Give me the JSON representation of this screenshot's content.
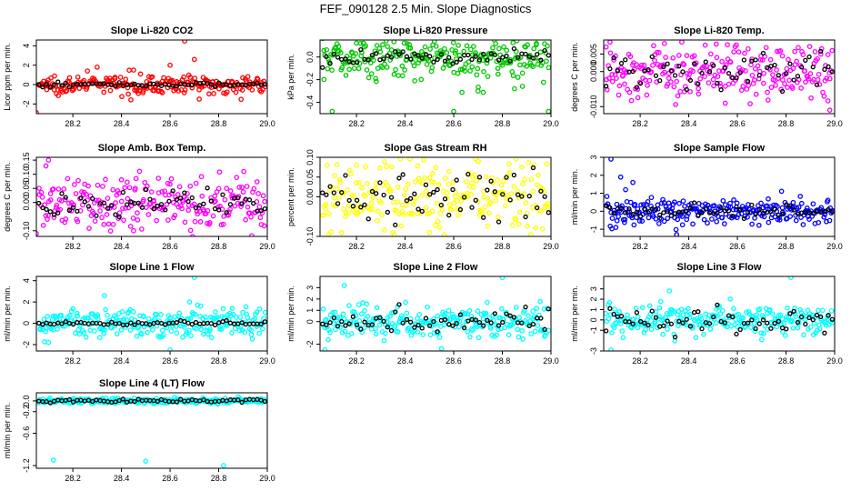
{
  "figure": {
    "title": "FEF_090128  2.5 Min. Slope Diagnostics"
  },
  "chart_data": [
    {
      "type": "scatter",
      "title": "Slope Li-820 CO2",
      "xlabel": "",
      "ylabel": "Licor ppm per min.",
      "xlim": [
        28.05,
        29.0
      ],
      "ylim": [
        -3.0,
        4.6
      ],
      "xticks": [
        "28.2",
        "28.4",
        "28.6",
        "28.8",
        "29.0"
      ],
      "yticks": [
        "-2",
        "0",
        "2",
        "4"
      ],
      "color": "#ff0000",
      "spread": 0.45,
      "outliers": [
        {
          "x": 28.66,
          "y": 4.5
        },
        {
          "x": 28.7,
          "y": 2.6
        },
        {
          "x": 28.6,
          "y": 2.0
        },
        {
          "x": 28.05,
          "y": -2.9
        },
        {
          "x": 28.3,
          "y": 1.8
        },
        {
          "x": 28.26,
          "y": 1.4
        },
        {
          "x": 28.72,
          "y": -1.5
        },
        {
          "x": 28.45,
          "y": 1.5
        }
      ],
      "black_spread": 0.12
    },
    {
      "type": "scatter",
      "title": "Slope Li-820 Pressure",
      "xlabel": "",
      "ylabel": "kPa per min.",
      "xlim": [
        28.05,
        29.0
      ],
      "ylim": [
        -0.5,
        0.15
      ],
      "xticks": [
        "28.2",
        "28.4",
        "28.6",
        "28.8",
        "29.0"
      ],
      "yticks": [
        "-0.4",
        "-0.2",
        "0.0"
      ],
      "color": "#00c800",
      "spread": 0.1,
      "outliers": [
        {
          "x": 28.6,
          "y": -0.48
        },
        {
          "x": 28.99,
          "y": -0.48
        },
        {
          "x": 28.1,
          "y": -0.48
        },
        {
          "x": 28.94,
          "y": 0.12
        },
        {
          "x": 28.7,
          "y": -0.3
        },
        {
          "x": 28.85,
          "y": -0.28
        }
      ],
      "black_spread": 0.03
    },
    {
      "type": "scatter",
      "title": "Slope Li-820 Temp.",
      "xlabel": "",
      "ylabel": "degrees C per min.",
      "xlim": [
        28.05,
        29.0
      ],
      "ylim": [
        -0.012,
        0.009
      ],
      "xticks": [
        "28.2",
        "28.4",
        "28.6",
        "28.8",
        "29.0"
      ],
      "yticks": [
        "-0.010",
        "0.000",
        "0.005"
      ],
      "color": "#ff00ff",
      "spread": 0.004,
      "outliers": [
        {
          "x": 28.98,
          "y": -0.011
        },
        {
          "x": 28.3,
          "y": 0.008
        },
        {
          "x": 28.55,
          "y": -0.009
        },
        {
          "x": 28.06,
          "y": 0.007
        }
      ],
      "black_spread": 0.003
    },
    {
      "type": "scatter",
      "title": "Slope Amb. Box Temp.",
      "xlabel": "",
      "ylabel": "degrees C per min.",
      "xlim": [
        28.05,
        29.0
      ],
      "ylim": [
        -0.12,
        0.16
      ],
      "xticks": [
        "28.2",
        "28.4",
        "28.6",
        "28.8",
        "29.0"
      ],
      "yticks": [
        "-0.10",
        "0.00",
        "0.05",
        "0.10",
        "0.15"
      ],
      "color": "#ff00ff",
      "spread": 0.05,
      "outliers": [
        {
          "x": 28.1,
          "y": 0.15
        },
        {
          "x": 28.05,
          "y": -0.11
        },
        {
          "x": 28.45,
          "y": -0.1
        }
      ],
      "black_spread": 0.025
    },
    {
      "type": "scatter",
      "title": "Slope Gas Stream RH",
      "xlabel": "",
      "ylabel": "percent per min.",
      "xlim": [
        28.05,
        29.0
      ],
      "ylim": [
        -0.1,
        0.1
      ],
      "xticks": [
        "28.2",
        "28.4",
        "28.6",
        "28.8",
        "29.0"
      ],
      "yticks": [
        "-0.10",
        "0.00",
        "0.05",
        "0.10"
      ],
      "color": "#ffff00",
      "spread": 0.04,
      "outliers": [
        {
          "x": 28.7,
          "y": 0.09
        },
        {
          "x": 28.2,
          "y": 0.08
        },
        {
          "x": 28.5,
          "y": -0.09
        }
      ],
      "black_spread": 0.035
    },
    {
      "type": "scatter",
      "title": "Slope Sample Flow",
      "xlabel": "",
      "ylabel": "ml/min per min.",
      "xlim": [
        28.05,
        29.0
      ],
      "ylim": [
        -1.4,
        3.0
      ],
      "xticks": [
        "28.2",
        "28.4",
        "28.6",
        "28.8",
        "29.0"
      ],
      "yticks": [
        "-1",
        "0",
        "1",
        "2",
        "3"
      ],
      "color": "#0000ff",
      "spread": 0.35,
      "outliers": [
        {
          "x": 28.08,
          "y": 2.9
        },
        {
          "x": 28.12,
          "y": 1.9
        },
        {
          "x": 28.17,
          "y": 1.6
        },
        {
          "x": 28.14,
          "y": 1.2
        },
        {
          "x": 28.1,
          "y": -0.9
        },
        {
          "x": 28.35,
          "y": -1.3
        }
      ],
      "black_spread": 0.2
    },
    {
      "type": "scatter",
      "title": "Slope Line 1 Flow",
      "xlabel": "",
      "ylabel": "ml/min per min.",
      "xlim": [
        28.05,
        29.0
      ],
      "ylim": [
        -2.6,
        4.4
      ],
      "xticks": [
        "28.2",
        "28.4",
        "28.6",
        "28.8",
        "29.0"
      ],
      "yticks": [
        "-2",
        "0",
        "2",
        "4"
      ],
      "color": "#00ffff",
      "spread": 0.7,
      "outliers": [
        {
          "x": 28.7,
          "y": 4.3
        },
        {
          "x": 28.1,
          "y": -1.8
        },
        {
          "x": 28.6,
          "y": -2.5
        },
        {
          "x": 28.33,
          "y": 2.6
        },
        {
          "x": 28.68,
          "y": 2.0
        }
      ],
      "black_spread": 0.1
    },
    {
      "type": "scatter",
      "title": "Slope Line 2 Flow",
      "xlabel": "",
      "ylabel": "ml/min per min.",
      "xlim": [
        28.05,
        29.0
      ],
      "ylim": [
        -2.6,
        4.0
      ],
      "xticks": [
        "28.2",
        "28.4",
        "28.6",
        "28.8",
        "29.0"
      ],
      "yticks": [
        "-2",
        "0",
        "1",
        "2",
        "3"
      ],
      "color": "#00ffff",
      "spread": 0.75,
      "outliers": [
        {
          "x": 28.07,
          "y": -2.5
        },
        {
          "x": 28.8,
          "y": 3.9
        },
        {
          "x": 28.15,
          "y": 3.2
        },
        {
          "x": 28.55,
          "y": -2.4
        }
      ],
      "black_spread": 0.5
    },
    {
      "type": "scatter",
      "title": "Slope Line 3 Flow",
      "xlabel": "",
      "ylabel": "ml/min per min.",
      "xlim": [
        28.05,
        29.0
      ],
      "ylim": [
        -3.0,
        4.2
      ],
      "xticks": [
        "28.2",
        "28.4",
        "28.6",
        "28.8",
        "29.0"
      ],
      "yticks": [
        "-3",
        "-1",
        "0",
        "1",
        "2",
        "3"
      ],
      "color": "#00ffff",
      "spread": 0.7,
      "outliers": [
        {
          "x": 28.82,
          "y": 4.1
        },
        {
          "x": 28.08,
          "y": -2.9
        },
        {
          "x": 28.32,
          "y": 2.8
        },
        {
          "x": 28.7,
          "y": -1.9
        }
      ],
      "black_spread": 0.6
    },
    {
      "type": "scatter",
      "title": "Slope Line 4 (LT) Flow",
      "xlabel": "",
      "ylabel": "ml/min per min.",
      "xlim": [
        28.05,
        29.0
      ],
      "ylim": [
        -1.25,
        0.15
      ],
      "xticks": [
        "28.2",
        "28.4",
        "28.6",
        "28.8",
        "29.0"
      ],
      "yticks": [
        "-1.2",
        "-0.6",
        "-0.2",
        "0.0"
      ],
      "color": "#00ffff",
      "spread": 0.025,
      "outliers": [
        {
          "x": 28.12,
          "y": -1.1
        },
        {
          "x": 28.5,
          "y": -1.12
        },
        {
          "x": 28.82,
          "y": -1.2
        }
      ],
      "black_spread": 0.02
    }
  ]
}
